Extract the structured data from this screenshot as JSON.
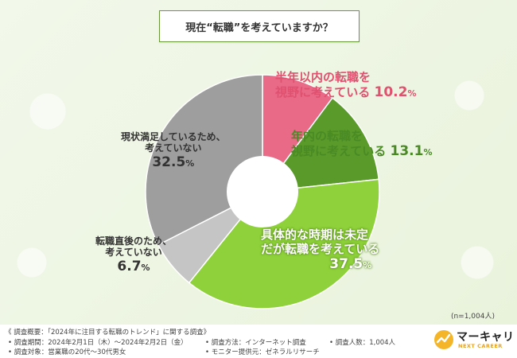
{
  "title": "現在“転職”を考えていますか？",
  "colors": {
    "s1": "#e96a87",
    "s2": "#5a9a2a",
    "s3": "#8ed13a",
    "s4": "#c5c5c5",
    "s5": "#9e9e9e",
    "label1": "#e0506f",
    "label2": "#4a8a24",
    "label3": "#ffffff",
    "label_gray": "#333333"
  },
  "chart_data": {
    "type": "pie",
    "title": "現在“転職”を考えていますか？",
    "n_label": "(n=1,004人)",
    "slices": [
      {
        "label_line1": "半年以内の転職を",
        "label_line2": "視野に考えている",
        "pct_main": "10.2",
        "value": 10.2
      },
      {
        "label_line1": "年内の転職を",
        "label_line2": "視野に考えている",
        "pct_main": "13.1",
        "value": 13.1
      },
      {
        "label_line1": "具体的な時期は未定",
        "label_line2": "だが転職を考えている",
        "pct_main": "37.5",
        "value": 37.5
      },
      {
        "label_line1": "転職直後のため、",
        "label_line2": "考えていない",
        "pct_main": "6.7",
        "value": 6.7
      },
      {
        "label_line1": "現状満足しているため、",
        "label_line2": "考えていない",
        "pct_main": "32.5",
        "value": 32.5
      }
    ],
    "pct_suffix": "%"
  },
  "footer": {
    "overview": "《 調査概要：「2024年に注目する転職のトレンド」に関する調査》",
    "period": "• 調査期間：2024年2月1日（木）～2024年2月2日（金）",
    "target": "• 調査対象：営業職の20代～30代男女",
    "method": "• 調査方法：インターネット調査",
    "provider": "• モニター提供元：ゼネラルリサーチ",
    "count": "• 調査人数：1,004人"
  },
  "logo": {
    "name": "マーキャリ",
    "tagline": "NEXT CAREER"
  }
}
